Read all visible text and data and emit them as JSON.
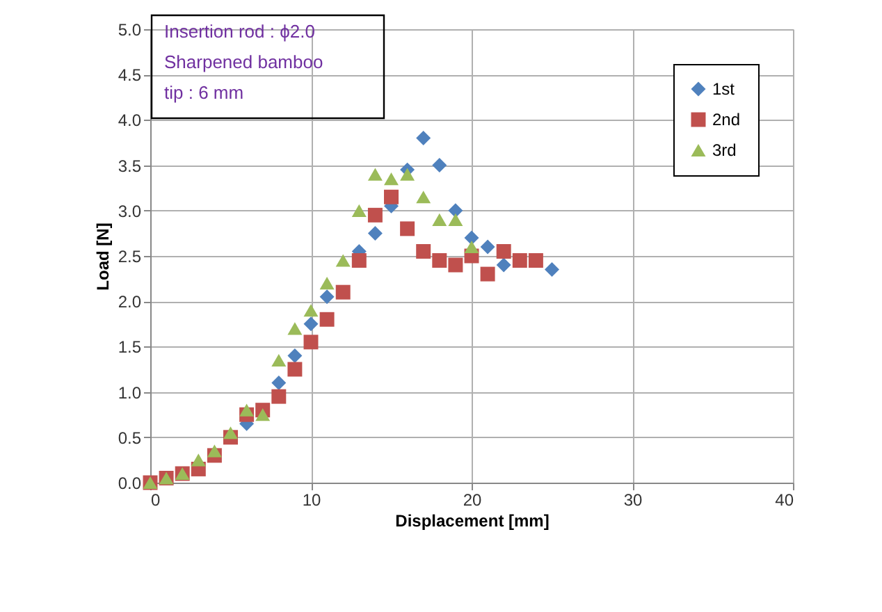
{
  "chart_data": {
    "type": "scatter",
    "xlabel": "Displacement  [mm]",
    "ylabel": "Load  [N]",
    "annotations": [
      "Insertion  rod : ϕ2.0",
      "Sharpened bamboo",
      "tip : 6 mm"
    ],
    "xlim": [
      0,
      40
    ],
    "xticks": [
      0,
      10,
      20,
      30,
      40
    ],
    "ylim": [
      0,
      5
    ],
    "yticks": [
      {
        "value": 0,
        "label": "0.0"
      },
      {
        "value": 0.5,
        "label": "0.5"
      },
      {
        "value": 1,
        "label": "1.0"
      },
      {
        "value": 1.5,
        "label": "1.5"
      },
      {
        "value": 2,
        "label": "2.0"
      },
      {
        "value": 2.5,
        "label": "2.5"
      },
      {
        "value": 3,
        "label": "3.0"
      },
      {
        "value": 3.5,
        "label": "3.5"
      },
      {
        "value": 4,
        "label": "4.0"
      },
      {
        "value": 4.5,
        "label": "4.5"
      },
      {
        "value": 5,
        "label": "5.0"
      }
    ],
    "grid": true,
    "legend": "top right",
    "series": [
      {
        "name": "1st",
        "color": "#4f81bd",
        "marker": "diamond",
        "x": [
          6,
          8,
          9,
          10,
          11,
          13,
          14,
          15,
          16,
          17,
          18,
          19,
          20,
          21,
          22,
          25
        ],
        "values": [
          0.65,
          1.1,
          1.4,
          1.75,
          2.05,
          2.55,
          2.75,
          3.05,
          3.45,
          3.8,
          3.5,
          3.0,
          2.7,
          2.6,
          2.4,
          2.35
        ]
      },
      {
        "name": "2nd",
        "color": "#c0504d",
        "marker": "square",
        "x": [
          0,
          1,
          2,
          3,
          4,
          5,
          6,
          7,
          8,
          9,
          10,
          11,
          12,
          13,
          14,
          15,
          16,
          17,
          18,
          19,
          20,
          21,
          22,
          23,
          24
        ],
        "values": [
          0,
          0.05,
          0.1,
          0.15,
          0.3,
          0.5,
          0.75,
          0.8,
          0.95,
          1.25,
          1.55,
          1.8,
          2.1,
          2.45,
          2.95,
          3.15,
          2.8,
          2.55,
          2.45,
          2.4,
          2.5,
          2.3,
          2.55,
          2.45,
          2.45
        ]
      },
      {
        "name": "3rd",
        "color": "#9bbb59",
        "marker": "triangle",
        "x": [
          0,
          1,
          2,
          3,
          4,
          5,
          6,
          7,
          8,
          9,
          10,
          11,
          12,
          13,
          14,
          15,
          16,
          17,
          18,
          19,
          20
        ],
        "values": [
          0,
          0.05,
          0.1,
          0.25,
          0.35,
          0.55,
          0.8,
          0.75,
          1.35,
          1.7,
          1.9,
          2.2,
          2.45,
          3.0,
          3.4,
          3.35,
          3.4,
          3.15,
          2.9,
          2.9,
          2.6
        ]
      }
    ]
  }
}
